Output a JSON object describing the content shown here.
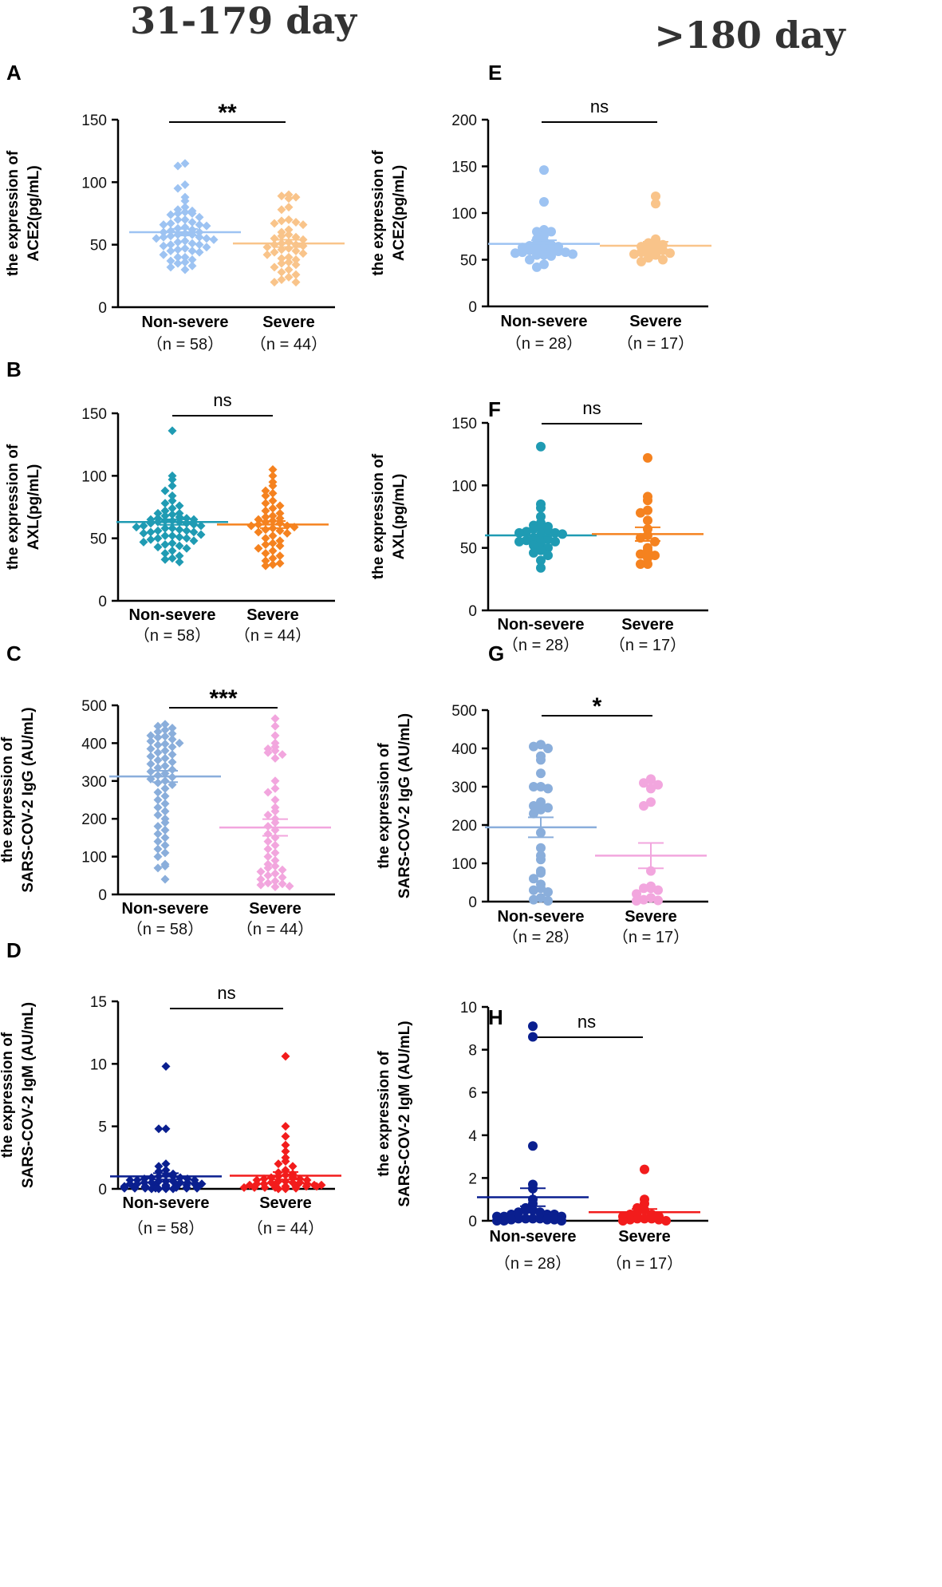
{
  "column_titles": [
    "31-179 day",
    ">180  day"
  ],
  "chart_data": [
    {
      "panel": "A",
      "type": "scatter",
      "ylabel_lines": [
        "the expression of",
        "ACE2(pg/mL)"
      ],
      "ylim": [
        0,
        150
      ],
      "yticks": [
        0,
        50,
        100,
        150
      ],
      "significance": "**",
      "groups": [
        {
          "label": "Non-severe",
          "n_label": "（n = 58）",
          "color": "#9dc3f2",
          "marker": "diamond",
          "mean": 60,
          "sem": 2.6,
          "values": [
            115,
            113,
            98,
            95,
            88,
            85,
            80,
            78,
            77,
            76,
            75,
            75,
            74,
            72,
            70,
            70,
            68,
            67,
            66,
            66,
            65,
            64,
            63,
            62,
            61,
            60,
            60,
            59,
            58,
            58,
            57,
            56,
            56,
            55,
            55,
            54,
            53,
            52,
            51,
            50,
            50,
            49,
            48,
            47,
            46,
            45,
            45,
            44,
            42,
            40,
            40,
            38,
            37,
            36,
            35,
            33,
            32,
            30
          ]
        },
        {
          "label": "Severe",
          "n_label": "（n = 44）",
          "color": "#f9c48a",
          "marker": "diamond",
          "mean": 51,
          "sem": 2.9,
          "values": [
            90,
            89,
            88,
            87,
            80,
            78,
            70,
            69,
            68,
            67,
            66,
            62,
            60,
            58,
            57,
            56,
            55,
            54,
            52,
            51,
            50,
            50,
            49,
            48,
            47,
            46,
            45,
            44,
            43,
            42,
            40,
            39,
            38,
            36,
            35,
            34,
            32,
            30,
            28,
            26,
            24,
            22,
            20,
            20
          ]
        }
      ]
    },
    {
      "panel": "B",
      "type": "scatter",
      "ylabel_lines": [
        "the expression of",
        "AXL(pg/mL)"
      ],
      "ylim": [
        0,
        150
      ],
      "yticks": [
        0,
        50,
        100,
        150
      ],
      "significance": "ns",
      "groups": [
        {
          "label": "Non-severe",
          "n_label": "（n = 58）",
          "color": "#1f9bb3",
          "marker": "diamond",
          "mean": 63,
          "sem": 2.2,
          "values": [
            136,
            100,
            97,
            92,
            88,
            84,
            80,
            78,
            76,
            74,
            72,
            70,
            70,
            69,
            68,
            67,
            66,
            66,
            65,
            65,
            64,
            64,
            63,
            63,
            62,
            62,
            61,
            60,
            60,
            59,
            58,
            58,
            57,
            56,
            56,
            55,
            55,
            54,
            53,
            52,
            52,
            51,
            50,
            50,
            49,
            48,
            47,
            46,
            45,
            44,
            43,
            42,
            40,
            38,
            36,
            34,
            33,
            31
          ]
        },
        {
          "label": "Severe",
          "n_label": "（n = 44）",
          "color": "#f5821f",
          "marker": "diamond",
          "mean": 61,
          "sem": 2.8,
          "values": [
            105,
            100,
            95,
            92,
            88,
            86,
            84,
            80,
            78,
            76,
            74,
            72,
            70,
            68,
            67,
            66,
            65,
            64,
            63,
            62,
            61,
            60,
            60,
            59,
            58,
            57,
            56,
            55,
            54,
            52,
            50,
            48,
            46,
            45,
            44,
            42,
            40,
            38,
            36,
            34,
            32,
            30,
            29,
            28
          ]
        }
      ]
    },
    {
      "panel": "C",
      "type": "scatter",
      "ylabel_lines": [
        "the expression of",
        "SARS-COV-2 IgG (AU/mL)"
      ],
      "ylim": [
        0,
        500
      ],
      "yticks": [
        0,
        100,
        200,
        300,
        400,
        500
      ],
      "significance": "***",
      "groups": [
        {
          "label": "Non-severe",
          "n_label": "（n = 58）",
          "color": "#8aaedb",
          "marker": "diamond",
          "mean": 312,
          "sem": 15,
          "values": [
            450,
            445,
            440,
            435,
            430,
            425,
            420,
            418,
            415,
            410,
            405,
            400,
            398,
            395,
            390,
            385,
            380,
            375,
            370,
            365,
            360,
            355,
            350,
            345,
            340,
            335,
            330,
            325,
            320,
            315,
            310,
            305,
            300,
            295,
            290,
            280,
            270,
            260,
            250,
            240,
            230,
            220,
            210,
            200,
            190,
            180,
            170,
            160,
            150,
            140,
            130,
            120,
            110,
            100,
            80,
            75,
            70,
            40
          ]
        },
        {
          "label": "Severe",
          "n_label": "（n = 44）",
          "color": "#f2a6de",
          "marker": "diamond",
          "mean": 177,
          "sem": 22,
          "values": [
            465,
            445,
            420,
            400,
            390,
            385,
            380,
            375,
            370,
            360,
            300,
            280,
            270,
            250,
            230,
            220,
            210,
            200,
            190,
            180,
            170,
            160,
            150,
            140,
            130,
            120,
            110,
            100,
            90,
            80,
            75,
            70,
            65,
            60,
            55,
            50,
            45,
            40,
            35,
            30,
            28,
            25,
            22,
            20
          ]
        }
      ]
    },
    {
      "panel": "D",
      "type": "scatter",
      "ylabel_lines": [
        "the expression of",
        "SARS-COV-2 IgM (AU/mL)"
      ],
      "ylim": [
        0,
        15
      ],
      "yticks": [
        0,
        5,
        10,
        15
      ],
      "significance": "ns",
      "groups": [
        {
          "label": "Non-severe",
          "n_label": "（n = 58）",
          "color": "#0a1f8f",
          "marker": "diamond",
          "mean": 1.0,
          "sem": 0.25,
          "values": [
            9.8,
            4.8,
            4.8,
            2.0,
            1.8,
            1.5,
            1.4,
            1.2,
            1.1,
            1.0,
            1.0,
            0.9,
            0.9,
            0.8,
            0.8,
            0.7,
            0.7,
            0.7,
            0.6,
            0.6,
            0.6,
            0.5,
            0.5,
            0.5,
            0.5,
            0.4,
            0.4,
            0.4,
            0.4,
            0.3,
            0.3,
            0.3,
            0.3,
            0.3,
            0.2,
            0.2,
            0.2,
            0.2,
            0.2,
            0.2,
            0.1,
            0.1,
            0.1,
            0.1,
            0.1,
            0.1,
            0.1,
            0.1,
            0.05,
            0.05,
            0.05,
            0.05,
            0.05,
            0.05,
            0.0,
            0.0,
            0.0,
            0.0
          ]
        },
        {
          "label": "Severe",
          "n_label": "（n = 44）",
          "color": "#f21c1c",
          "marker": "diamond",
          "mean": 1.05,
          "sem": 0.3,
          "values": [
            10.6,
            5.0,
            4.2,
            3.5,
            3.0,
            2.5,
            2.2,
            2.0,
            1.8,
            1.5,
            1.3,
            1.2,
            1.1,
            1.0,
            0.9,
            0.9,
            0.8,
            0.8,
            0.7,
            0.7,
            0.6,
            0.6,
            0.5,
            0.5,
            0.5,
            0.4,
            0.4,
            0.4,
            0.3,
            0.3,
            0.3,
            0.3,
            0.2,
            0.2,
            0.2,
            0.2,
            0.1,
            0.1,
            0.1,
            0.1,
            0.05,
            0.05,
            0.0,
            0.0
          ]
        }
      ]
    },
    {
      "panel": "E",
      "type": "scatter",
      "ylabel_lines": [
        "the expression of",
        "ACE2(pg/mL)"
      ],
      "ylim": [
        0,
        200
      ],
      "yticks": [
        0,
        50,
        100,
        150,
        200
      ],
      "significance": "ns",
      "groups": [
        {
          "label": "Non-severe",
          "n_label": "（n = 28）",
          "color": "#9dc3f2",
          "marker": "circle",
          "mean": 67,
          "sem": 3.8,
          "values": [
            146,
            112,
            82,
            80,
            80,
            76,
            72,
            70,
            68,
            66,
            65,
            64,
            63,
            62,
            61,
            60,
            60,
            59,
            58,
            58,
            57,
            56,
            55,
            55,
            54,
            50,
            45,
            42
          ]
        },
        {
          "label": "Severe",
          "n_label": "（n = 17）",
          "color": "#f9c48a",
          "marker": "circle",
          "mean": 65,
          "sem": 4.2,
          "values": [
            118,
            110,
            72,
            70,
            68,
            66,
            64,
            62,
            60,
            60,
            58,
            57,
            56,
            55,
            52,
            50,
            48
          ]
        }
      ]
    },
    {
      "panel": "F",
      "type": "scatter",
      "ylabel_lines": [
        "the expression of",
        "AXL(pg/mL)"
      ],
      "ylim": [
        0,
        150
      ],
      "yticks": [
        0,
        50,
        100,
        150
      ],
      "significance": "ns",
      "groups": [
        {
          "label": "Non-severe",
          "n_label": "（n = 28）",
          "color": "#1f9bb3",
          "marker": "circle",
          "mean": 60,
          "sem": 3.5,
          "values": [
            131,
            85,
            82,
            75,
            70,
            68,
            67,
            66,
            65,
            64,
            63,
            62,
            62,
            61,
            60,
            58,
            57,
            56,
            55,
            55,
            54,
            52,
            50,
            48,
            46,
            44,
            40,
            34
          ]
        },
        {
          "label": "Severe",
          "n_label": "（n = 17）",
          "color": "#f5821f",
          "marker": "circle",
          "mean": 61,
          "sem": 5.5,
          "values": [
            122,
            91,
            88,
            80,
            78,
            72,
            65,
            60,
            58,
            55,
            50,
            48,
            45,
            44,
            42,
            37,
            37
          ]
        }
      ]
    },
    {
      "panel": "G",
      "type": "scatter",
      "ylabel_lines": [
        "the expression of",
        "SARS-COV-2 IgG (AU/mL)"
      ],
      "ylim": [
        0,
        500
      ],
      "yticks": [
        0,
        100,
        200,
        300,
        400,
        500
      ],
      "significance": "*",
      "groups": [
        {
          "label": "Non-severe",
          "n_label": "（n = 28）",
          "color": "#8aaedb",
          "marker": "circle",
          "mean": 194,
          "sem": 26,
          "values": [
            410,
            405,
            400,
            380,
            370,
            335,
            300,
            300,
            295,
            260,
            250,
            245,
            240,
            230,
            180,
            140,
            120,
            110,
            80,
            75,
            60,
            45,
            35,
            30,
            25,
            10,
            5,
            2
          ]
        },
        {
          "label": "Severe",
          "n_label": "（n = 17）",
          "color": "#f2a6de",
          "marker": "circle",
          "mean": 120,
          "sem": 33,
          "values": [
            320,
            318,
            310,
            305,
            295,
            260,
            250,
            80,
            40,
            35,
            35,
            30,
            20,
            10,
            5,
            3,
            2
          ]
        }
      ]
    },
    {
      "panel": "H",
      "type": "scatter",
      "ylabel_lines": [
        "the expression of",
        "SARS-COV-2 IgM (AU/mL)"
      ],
      "ylim": [
        0,
        10
      ],
      "yticks": [
        0,
        2,
        4,
        6,
        8,
        10
      ],
      "significance": "ns",
      "groups": [
        {
          "label": "Non-severe",
          "n_label": "（n = 28）",
          "color": "#0a1f8f",
          "marker": "circle",
          "mean": 1.1,
          "sem": 0.42,
          "values": [
            9.1,
            8.6,
            3.5,
            1.7,
            1.5,
            1.0,
            0.8,
            0.6,
            0.5,
            0.5,
            0.4,
            0.4,
            0.3,
            0.3,
            0.3,
            0.2,
            0.2,
            0.2,
            0.1,
            0.1,
            0.1,
            0.1,
            0.05,
            0.05,
            0.05,
            0.0,
            0.0,
            0.0
          ]
        },
        {
          "label": "Severe",
          "n_label": "（n = 17）",
          "color": "#f21c1c",
          "marker": "circle",
          "mean": 0.4,
          "sem": 0.15,
          "values": [
            2.4,
            1.0,
            0.8,
            0.6,
            0.5,
            0.4,
            0.3,
            0.3,
            0.2,
            0.2,
            0.1,
            0.1,
            0.1,
            0.05,
            0.05,
            0.0,
            0.0
          ]
        }
      ]
    }
  ]
}
